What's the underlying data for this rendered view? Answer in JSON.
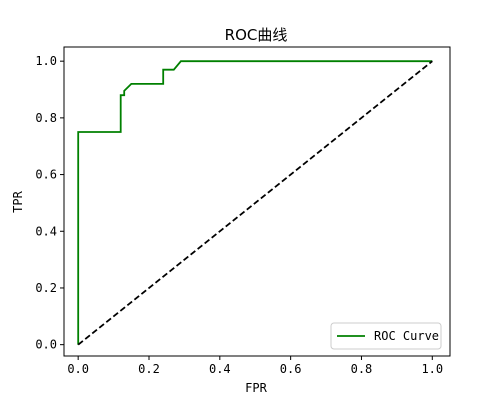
{
  "chart_data": {
    "type": "line",
    "title": "ROC曲线",
    "xlabel": "FPR",
    "ylabel": "TPR",
    "xlim": [
      -0.04,
      1.05
    ],
    "ylim": [
      -0.04,
      1.05
    ],
    "xticks": [
      0.0,
      0.2,
      0.4,
      0.6,
      0.8,
      1.0
    ],
    "yticks": [
      0.0,
      0.2,
      0.4,
      0.6,
      0.8,
      1.0
    ],
    "tick_labels_x": [
      "0.0",
      "0.2",
      "0.4",
      "0.6",
      "0.8",
      "1.0"
    ],
    "tick_labels_y": [
      "0.0",
      "0.2",
      "0.4",
      "0.6",
      "0.8",
      "1.0"
    ],
    "grid": false,
    "legend_position": "lower-right",
    "series": [
      {
        "name": "ROC Curve",
        "color": "#008000",
        "style": "solid",
        "x": [
          0.0,
          0.0,
          0.12,
          0.12,
          0.13,
          0.13,
          0.15,
          0.15,
          0.24,
          0.24,
          0.27,
          0.27,
          0.29,
          0.29,
          1.0
        ],
        "y": [
          0.0,
          0.75,
          0.75,
          0.88,
          0.88,
          0.895,
          0.92,
          0.92,
          0.92,
          0.97,
          0.97,
          0.97,
          1.0,
          1.0,
          1.0
        ]
      },
      {
        "name": "",
        "color": "#000000",
        "style": "dashed",
        "x": [
          0.0,
          1.0
        ],
        "y": [
          0.0,
          1.0
        ]
      }
    ]
  }
}
